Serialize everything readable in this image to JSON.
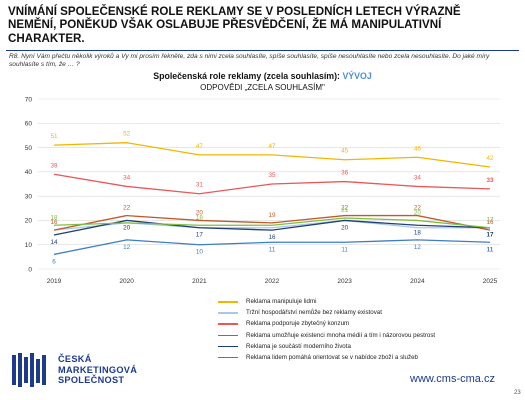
{
  "headline": "VNÍMÁNÍ SPOLEČENSKÉ ROLE REKLAMY SE V POSLEDNÍCH LETECH VÝRAZNĚ NEMĚNÍ, PONĚKUD VŠAK OSLABUJE PŘESVĚDČENÍ, ŽE MÁ MANIPULATIVNÍ CHARAKTER.",
  "question": "R8. Nyní Vám přečtu několik výroků a Vy mi prosím řekněte, zda s nimi zcela souhlasíte, spíše souhlasíte, spíše nesouhlasíte nebo zcela nesouhlasíte. Do jaké míry souhlasíte s tím, že … ?",
  "chart_title_main": "Společenská role reklamy (zcela souhlasím):",
  "chart_title_accent": "VÝVOJ",
  "chart_subtitle": "ODPOVĚDI „ZCELA SOUHLASÍM\"",
  "website": "www.cms-cma.cz",
  "page_number": "23",
  "logo": {
    "line1": "ČESKÁ",
    "line2": "MARKETINGOVÁ",
    "line3": "SPOLEČNOST",
    "color": "#1c3b8f"
  },
  "chart_data": {
    "type": "line",
    "title": "Společenská role reklamy (zcela souhlasím): VÝVOJ",
    "subtitle": "ODPOVĚDI „ZCELA SOUHLASÍM\"",
    "x": [
      "2019",
      "2020",
      "2021",
      "2022",
      "2023",
      "2024",
      "2025"
    ],
    "ylim": [
      0,
      70
    ],
    "yticks": [
      0,
      10,
      20,
      30,
      40,
      50,
      60,
      70
    ],
    "grid": true,
    "legend_position": "bottom",
    "series": [
      {
        "name": "Reklama manipuluje lidmi",
        "color": "#f2b600",
        "values": [
          51,
          52,
          47,
          47,
          45,
          46,
          42
        ],
        "labels": [
          "51",
          "52",
          "47",
          "47",
          "45",
          "46",
          "42"
        ]
      },
      {
        "name": "Tržní hospodářství nemůže bez reklamy existovat",
        "color": "#a9c9e8",
        "values": [
          16,
          19,
          17,
          17,
          20,
          17,
          17
        ],
        "labels": [
          "",
          "",
          "",
          "",
          "",
          "",
          ""
        ]
      },
      {
        "name": "Reklama podporuje zbytečný konzum",
        "color": "#e8585a",
        "values": [
          39,
          34,
          31,
          35,
          36,
          34,
          33
        ],
        "labels": [
          "39",
          "34",
          "31",
          "35",
          "36",
          "34",
          "33"
        ]
      },
      {
        "name": "Reklama umožňuje existenci mnoha médií a tím i názorovou pestrost",
        "color": "#c05a2a",
        "values": [
          16,
          22,
          20,
          19,
          22,
          22,
          16
        ],
        "labels": [
          "16",
          "22",
          "20",
          "19",
          "22",
          "22",
          "16"
        ]
      },
      {
        "name": "Reklama je součástí moderního života",
        "color": "#1f3f7a",
        "values": [
          14,
          20,
          17,
          16,
          20,
          18,
          17
        ],
        "labels": [
          "14",
          "20",
          "17",
          "16",
          "20",
          "18",
          "17"
        ]
      },
      {
        "name": "Reklama lidem pomáhá orientovat se v nabídce zboží a služeb",
        "color": "#3d7fc4",
        "values": [
          6,
          12,
          10,
          11,
          11,
          12,
          11
        ],
        "labels": [
          "6",
          "12",
          "10",
          "11",
          "11",
          "12",
          "11"
        ]
      },
      {
        "name": "",
        "color": "#7fbf3f",
        "values": [
          18,
          19,
          18,
          18,
          21,
          20,
          17
        ],
        "labels": [
          "18",
          "",
          "18",
          "",
          "21",
          "20",
          "17"
        ]
      }
    ]
  }
}
